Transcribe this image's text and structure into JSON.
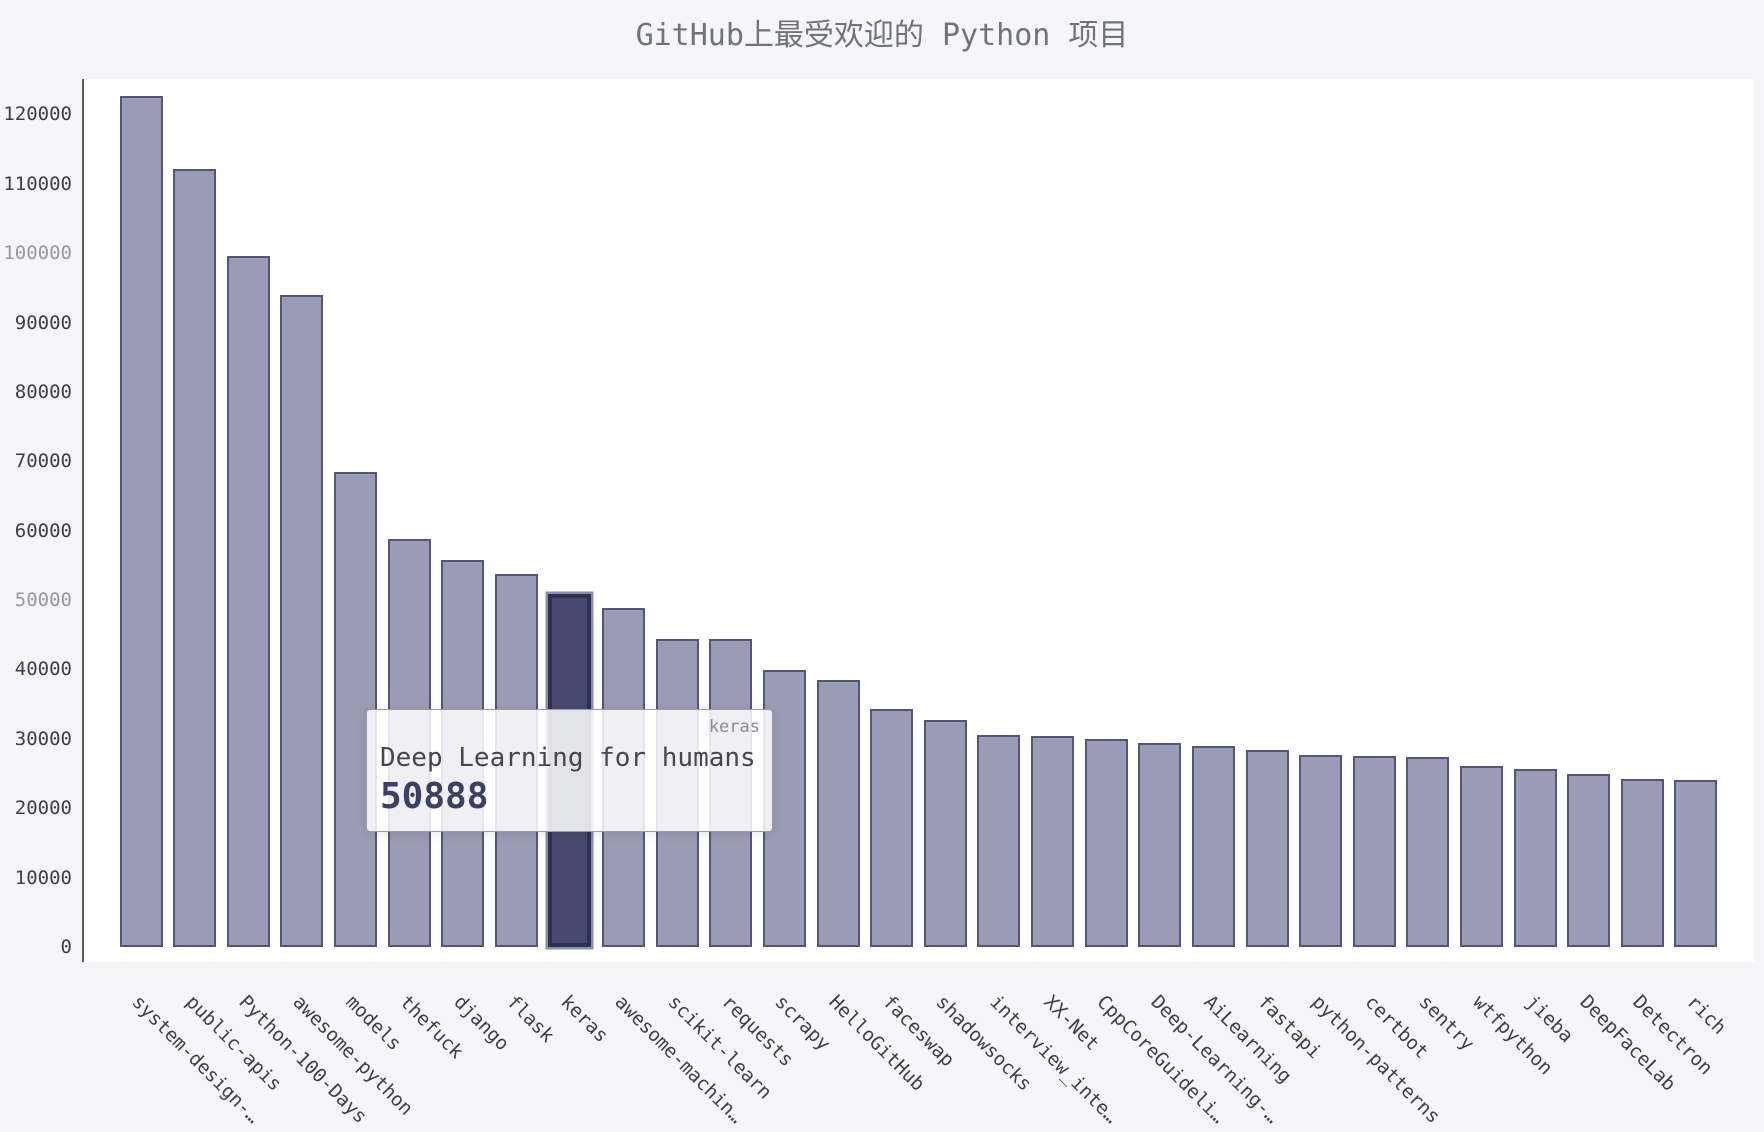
{
  "title": "GitHub上最受欢迎的 Python 项目",
  "colors": {
    "page_bg": "#f6f6f8",
    "plot_bg": "#ffffff",
    "bar_fill": "#9a9bb4",
    "bar_border": "#53557c",
    "highlight_fill": "#474a6e",
    "highlight_border": "#2e3156",
    "highlight_glow": "#8587a6",
    "axis_line": "#58585e",
    "tick_label": "#3f3f44",
    "tick_label_muted": "#97979c",
    "title_color": "#6e737c",
    "tooltip_value_color": "#3c4067"
  },
  "chart_data": {
    "type": "bar",
    "title": "GitHub上最受欢迎的 Python 项目",
    "categories": [
      "system-design-…",
      "public-apis",
      "Python-100-Days",
      "awesome-python",
      "models",
      "thefuck",
      "django",
      "flask",
      "keras",
      "awesome-machin…",
      "scikit-learn",
      "requests",
      "scrapy",
      "HelloGitHub",
      "faceswap",
      "shadowsocks",
      "interview_inte…",
      "XX-Net",
      "CppCoreGuideli…",
      "Deep-Learning-…",
      "AiLearning",
      "fastapi",
      "python-patterns",
      "certbot",
      "sentry",
      "wtfpython",
      "jieba",
      "DeepFaceLab",
      "Detectron",
      "rich"
    ],
    "values": [
      122700,
      112200,
      99600,
      94000,
      68500,
      58800,
      55800,
      53800,
      50888,
      48900,
      44450,
      44400,
      39900,
      38500,
      34300,
      32700,
      30550,
      30420,
      30000,
      29400,
      29000,
      28400,
      27700,
      27580,
      27390,
      26100,
      25660,
      24940,
      24220,
      24080
    ],
    "highlighted_category": "keras",
    "y_ticks": [
      0,
      10000,
      20000,
      30000,
      40000,
      50000,
      60000,
      70000,
      80000,
      90000,
      100000,
      110000,
      120000
    ],
    "muted_y_ticks": [
      50000,
      100000
    ],
    "ylim": [
      0,
      125100
    ],
    "xlabel": "",
    "ylabel": "",
    "grid": false,
    "legend": false,
    "x_label_rotation_deg": 45
  },
  "tooltip": {
    "series": "keras",
    "label": "Deep Learning for humans",
    "value": "50888"
  }
}
